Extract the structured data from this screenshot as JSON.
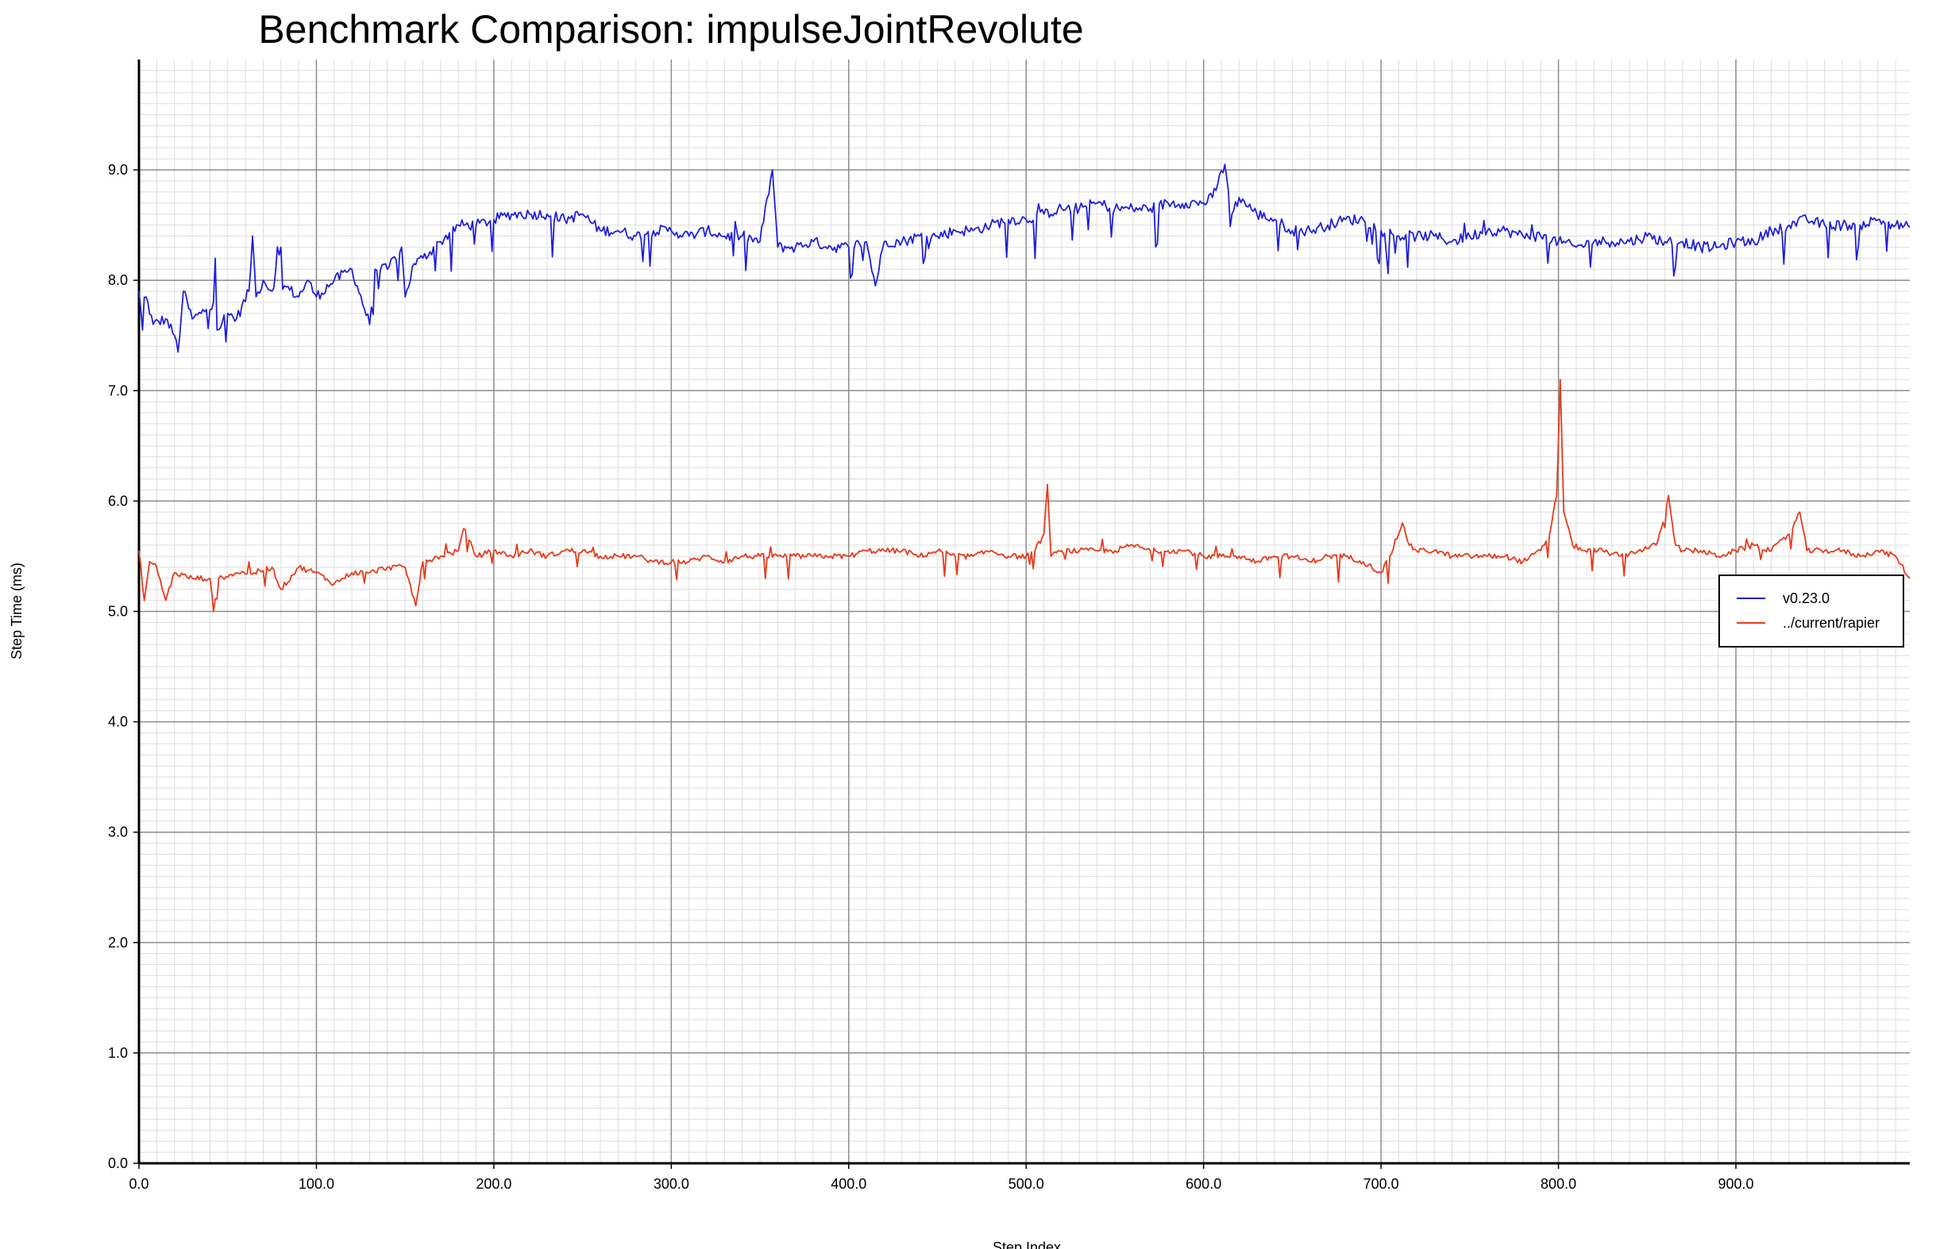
{
  "chart_data": {
    "type": "line",
    "title": "Benchmark Comparison: impulseJointRevolute",
    "xlabel": "Step Index",
    "ylabel": "Step Time (ms)",
    "xlim": [
      0,
      998
    ],
    "ylim": [
      0,
      10
    ],
    "x_ticks": [
      "0.0",
      "100.0",
      "200.0",
      "300.0",
      "400.0",
      "500.0",
      "600.0",
      "700.0",
      "800.0",
      "900.0"
    ],
    "y_ticks": [
      "0.0",
      "1.0",
      "2.0",
      "3.0",
      "4.0",
      "5.0",
      "6.0",
      "7.0",
      "8.0",
      "9.0"
    ],
    "grid": true,
    "legend_position": "right",
    "series": [
      {
        "name": "v0.23.0",
        "color": "#1f1fe0",
        "points": [
          [
            0,
            7.9
          ],
          [
            2,
            7.55
          ],
          [
            4,
            7.85
          ],
          [
            8,
            7.6
          ],
          [
            15,
            7.65
          ],
          [
            20,
            7.5
          ],
          [
            22,
            7.35
          ],
          [
            25,
            7.9
          ],
          [
            30,
            7.65
          ],
          [
            35,
            7.7
          ],
          [
            42,
            7.8
          ],
          [
            43,
            8.2
          ],
          [
            44,
            7.55
          ],
          [
            50,
            7.7
          ],
          [
            55,
            7.65
          ],
          [
            62,
            7.9
          ],
          [
            64,
            8.4
          ],
          [
            66,
            7.85
          ],
          [
            70,
            8.0
          ],
          [
            75,
            7.9
          ],
          [
            80,
            8.3
          ],
          [
            82,
            7.95
          ],
          [
            90,
            7.85
          ],
          [
            95,
            8.0
          ],
          [
            100,
            7.85
          ],
          [
            110,
            8.0
          ],
          [
            120,
            8.1
          ],
          [
            130,
            7.6
          ],
          [
            133,
            8.1
          ],
          [
            140,
            8.1
          ],
          [
            148,
            8.3
          ],
          [
            150,
            7.85
          ],
          [
            155,
            8.15
          ],
          [
            160,
            8.2
          ],
          [
            170,
            8.35
          ],
          [
            180,
            8.5
          ],
          [
            190,
            8.5
          ],
          [
            200,
            8.55
          ],
          [
            210,
            8.6
          ],
          [
            220,
            8.6
          ],
          [
            230,
            8.6
          ],
          [
            240,
            8.55
          ],
          [
            250,
            8.6
          ],
          [
            260,
            8.45
          ],
          [
            270,
            8.45
          ],
          [
            280,
            8.4
          ],
          [
            290,
            8.45
          ],
          [
            300,
            8.45
          ],
          [
            310,
            8.4
          ],
          [
            320,
            8.45
          ],
          [
            330,
            8.4
          ],
          [
            340,
            8.4
          ],
          [
            350,
            8.35
          ],
          [
            357,
            9.0
          ],
          [
            360,
            8.3
          ],
          [
            370,
            8.3
          ],
          [
            380,
            8.35
          ],
          [
            390,
            8.3
          ],
          [
            400,
            8.3
          ],
          [
            410,
            8.35
          ],
          [
            415,
            7.95
          ],
          [
            420,
            8.35
          ],
          [
            430,
            8.35
          ],
          [
            440,
            8.4
          ],
          [
            450,
            8.4
          ],
          [
            460,
            8.45
          ],
          [
            470,
            8.45
          ],
          [
            480,
            8.5
          ],
          [
            490,
            8.55
          ],
          [
            500,
            8.55
          ],
          [
            510,
            8.6
          ],
          [
            520,
            8.65
          ],
          [
            530,
            8.65
          ],
          [
            540,
            8.7
          ],
          [
            550,
            8.65
          ],
          [
            560,
            8.65
          ],
          [
            570,
            8.65
          ],
          [
            580,
            8.7
          ],
          [
            590,
            8.7
          ],
          [
            600,
            8.7
          ],
          [
            605,
            8.75
          ],
          [
            612,
            9.05
          ],
          [
            616,
            8.6
          ],
          [
            620,
            8.75
          ],
          [
            630,
            8.6
          ],
          [
            640,
            8.55
          ],
          [
            650,
            8.45
          ],
          [
            660,
            8.45
          ],
          [
            670,
            8.5
          ],
          [
            680,
            8.55
          ],
          [
            690,
            8.55
          ],
          [
            700,
            8.45
          ],
          [
            710,
            8.4
          ],
          [
            720,
            8.4
          ],
          [
            730,
            8.4
          ],
          [
            740,
            8.35
          ],
          [
            750,
            8.4
          ],
          [
            760,
            8.45
          ],
          [
            770,
            8.45
          ],
          [
            780,
            8.4
          ],
          [
            790,
            8.4
          ],
          [
            800,
            8.35
          ],
          [
            810,
            8.3
          ],
          [
            820,
            8.35
          ],
          [
            830,
            8.35
          ],
          [
            840,
            8.35
          ],
          [
            850,
            8.4
          ],
          [
            860,
            8.35
          ],
          [
            870,
            8.35
          ],
          [
            880,
            8.3
          ],
          [
            890,
            8.3
          ],
          [
            900,
            8.35
          ],
          [
            910,
            8.35
          ],
          [
            920,
            8.45
          ],
          [
            930,
            8.5
          ],
          [
            940,
            8.55
          ],
          [
            950,
            8.5
          ],
          [
            960,
            8.5
          ],
          [
            970,
            8.5
          ],
          [
            980,
            8.55
          ],
          [
            990,
            8.5
          ],
          [
            998,
            8.48
          ]
        ]
      },
      {
        "name": "../current/rapier",
        "color": "#e83a1a",
        "points": [
          [
            0,
            5.55
          ],
          [
            3,
            5.1
          ],
          [
            6,
            5.45
          ],
          [
            10,
            5.4
          ],
          [
            15,
            5.1
          ],
          [
            20,
            5.35
          ],
          [
            30,
            5.3
          ],
          [
            40,
            5.3
          ],
          [
            42,
            5.0
          ],
          [
            45,
            5.3
          ],
          [
            55,
            5.35
          ],
          [
            65,
            5.35
          ],
          [
            75,
            5.4
          ],
          [
            80,
            5.2
          ],
          [
            90,
            5.4
          ],
          [
            100,
            5.35
          ],
          [
            110,
            5.25
          ],
          [
            120,
            5.35
          ],
          [
            130,
            5.35
          ],
          [
            140,
            5.4
          ],
          [
            150,
            5.4
          ],
          [
            156,
            5.05
          ],
          [
            160,
            5.45
          ],
          [
            170,
            5.5
          ],
          [
            180,
            5.55
          ],
          [
            183,
            5.75
          ],
          [
            190,
            5.5
          ],
          [
            200,
            5.55
          ],
          [
            210,
            5.5
          ],
          [
            220,
            5.55
          ],
          [
            230,
            5.5
          ],
          [
            240,
            5.55
          ],
          [
            250,
            5.55
          ],
          [
            260,
            5.5
          ],
          [
            270,
            5.5
          ],
          [
            280,
            5.5
          ],
          [
            290,
            5.45
          ],
          [
            300,
            5.45
          ],
          [
            310,
            5.45
          ],
          [
            320,
            5.5
          ],
          [
            330,
            5.45
          ],
          [
            340,
            5.5
          ],
          [
            350,
            5.5
          ],
          [
            360,
            5.5
          ],
          [
            370,
            5.5
          ],
          [
            380,
            5.5
          ],
          [
            390,
            5.5
          ],
          [
            400,
            5.5
          ],
          [
            410,
            5.55
          ],
          [
            420,
            5.55
          ],
          [
            430,
            5.55
          ],
          [
            440,
            5.5
          ],
          [
            450,
            5.55
          ],
          [
            460,
            5.5
          ],
          [
            470,
            5.5
          ],
          [
            480,
            5.55
          ],
          [
            490,
            5.5
          ],
          [
            500,
            5.5
          ],
          [
            505,
            5.55
          ],
          [
            510,
            5.7
          ],
          [
            512,
            6.15
          ],
          [
            514,
            5.5
          ],
          [
            520,
            5.55
          ],
          [
            530,
            5.55
          ],
          [
            540,
            5.55
          ],
          [
            550,
            5.55
          ],
          [
            560,
            5.6
          ],
          [
            570,
            5.55
          ],
          [
            580,
            5.55
          ],
          [
            590,
            5.55
          ],
          [
            600,
            5.5
          ],
          [
            610,
            5.5
          ],
          [
            620,
            5.5
          ],
          [
            630,
            5.45
          ],
          [
            640,
            5.5
          ],
          [
            650,
            5.5
          ],
          [
            660,
            5.45
          ],
          [
            670,
            5.5
          ],
          [
            680,
            5.5
          ],
          [
            690,
            5.45
          ],
          [
            700,
            5.35
          ],
          [
            705,
            5.5
          ],
          [
            712,
            5.8
          ],
          [
            716,
            5.6
          ],
          [
            720,
            5.55
          ],
          [
            730,
            5.55
          ],
          [
            740,
            5.5
          ],
          [
            750,
            5.5
          ],
          [
            760,
            5.5
          ],
          [
            770,
            5.5
          ],
          [
            780,
            5.45
          ],
          [
            790,
            5.55
          ],
          [
            795,
            5.7
          ],
          [
            799,
            6.05
          ],
          [
            801,
            7.1
          ],
          [
            803,
            5.9
          ],
          [
            808,
            5.6
          ],
          [
            815,
            5.55
          ],
          [
            825,
            5.55
          ],
          [
            835,
            5.5
          ],
          [
            845,
            5.55
          ],
          [
            855,
            5.6
          ],
          [
            858,
            5.75
          ],
          [
            862,
            6.05
          ],
          [
            866,
            5.6
          ],
          [
            870,
            5.55
          ],
          [
            880,
            5.55
          ],
          [
            890,
            5.5
          ],
          [
            900,
            5.55
          ],
          [
            910,
            5.6
          ],
          [
            920,
            5.55
          ],
          [
            930,
            5.7
          ],
          [
            936,
            5.9
          ],
          [
            940,
            5.55
          ],
          [
            950,
            5.55
          ],
          [
            960,
            5.55
          ],
          [
            970,
            5.5
          ],
          [
            980,
            5.55
          ],
          [
            990,
            5.5
          ],
          [
            998,
            5.3
          ]
        ]
      }
    ]
  }
}
